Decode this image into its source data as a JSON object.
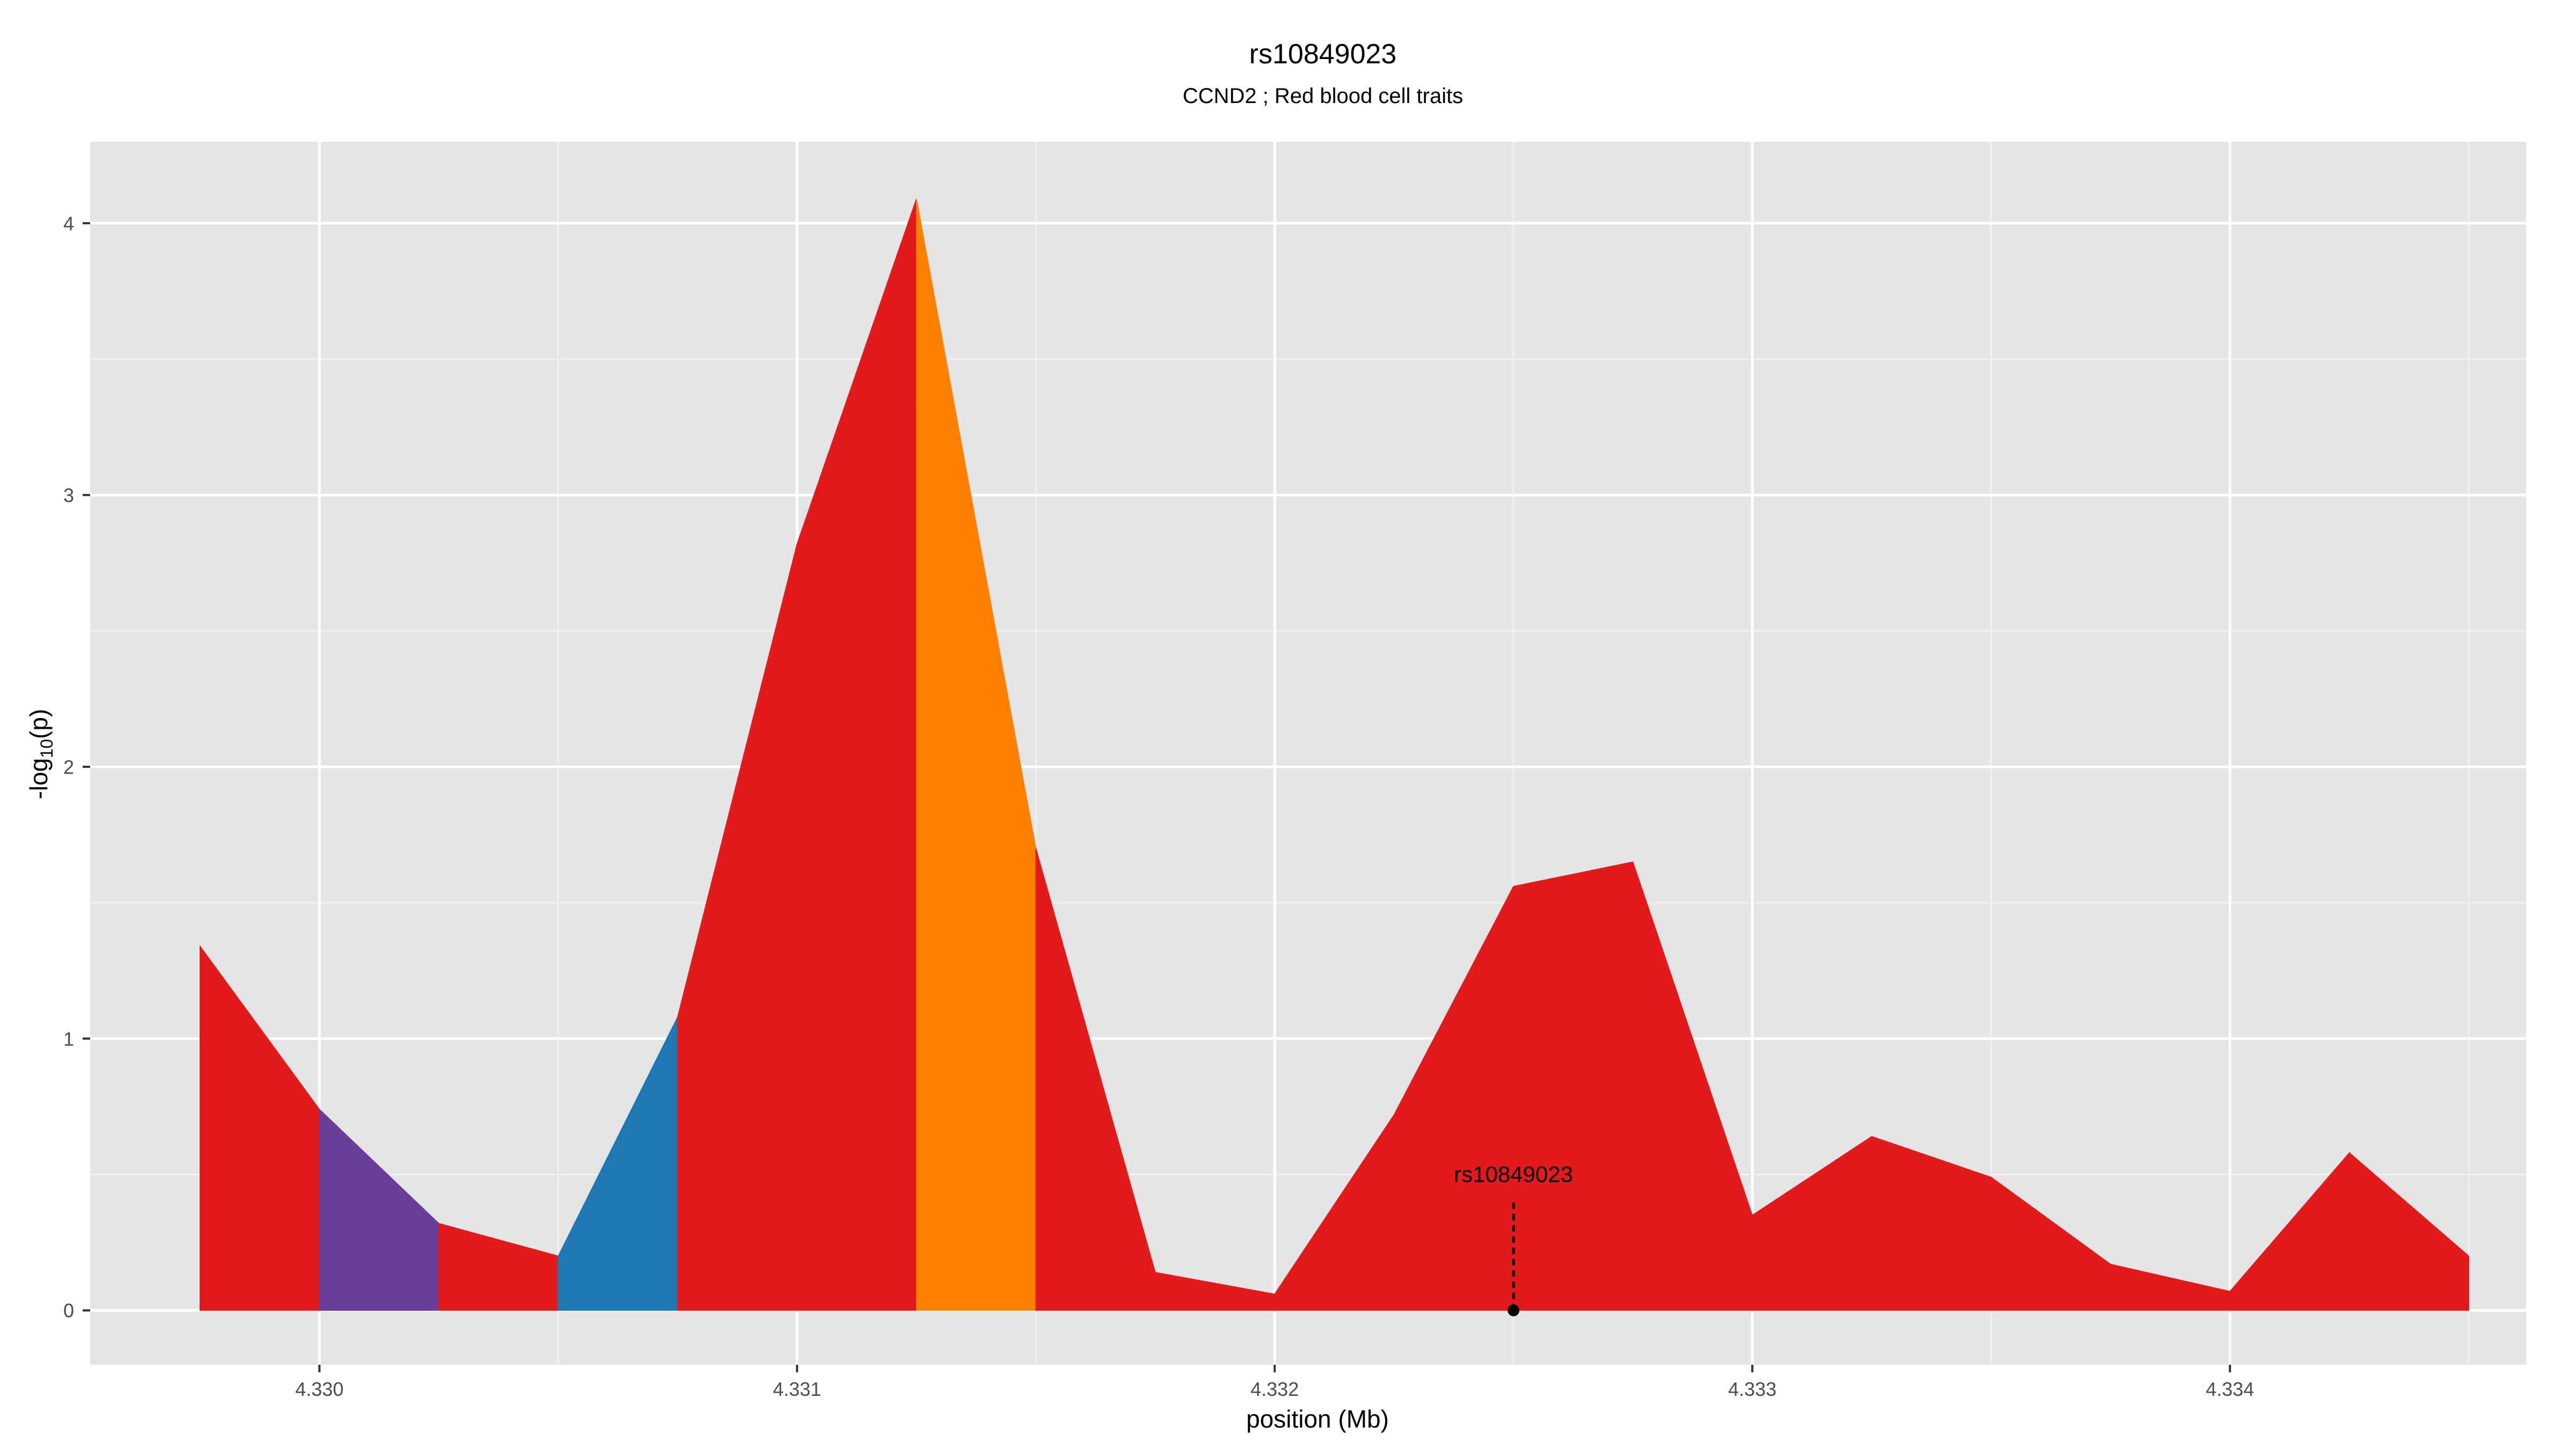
{
  "chart_data": {
    "type": "area",
    "title": "rs10849023",
    "subtitle": "CCND2 ; Red blood cell traits",
    "xlabel": "position (Mb)",
    "ylabel_main": "-log",
    "ylabel_sub": "10",
    "ylabel_end": "(p)",
    "xlim": [
      4.32952,
      4.33462
    ],
    "ylim": [
      -0.2,
      4.3
    ],
    "x_ticks": [
      4.33,
      4.331,
      4.332,
      4.333,
      4.334
    ],
    "x_tick_labels": [
      "4.330",
      "4.331",
      "4.332",
      "4.333",
      "4.334"
    ],
    "y_ticks": [
      0,
      1,
      2,
      3,
      4
    ],
    "y_tick_labels": [
      "0",
      "1",
      "2",
      "3",
      "4"
    ],
    "grid": true,
    "background": "#e5e5e5",
    "points": [
      {
        "x": 4.32975,
        "y": 1.34
      },
      {
        "x": 4.33,
        "y": 0.74
      },
      {
        "x": 4.33025,
        "y": 0.32
      },
      {
        "x": 4.3305,
        "y": 0.2
      },
      {
        "x": 4.33075,
        "y": 1.08
      },
      {
        "x": 4.331,
        "y": 2.82
      },
      {
        "x": 4.33125,
        "y": 4.09
      },
      {
        "x": 4.3315,
        "y": 1.7
      },
      {
        "x": 4.33175,
        "y": 0.14
      },
      {
        "x": 4.332,
        "y": 0.06
      },
      {
        "x": 4.33225,
        "y": 0.72
      },
      {
        "x": 4.3325,
        "y": 1.56
      },
      {
        "x": 4.33275,
        "y": 1.65
      },
      {
        "x": 4.333,
        "y": 0.35
      },
      {
        "x": 4.33325,
        "y": 0.64
      },
      {
        "x": 4.3335,
        "y": 0.49
      },
      {
        "x": 4.33375,
        "y": 0.17
      },
      {
        "x": 4.334,
        "y": 0.07
      },
      {
        "x": 4.33425,
        "y": 0.58
      },
      {
        "x": 4.3345,
        "y": 0.2
      }
    ],
    "default_color": "#e31a1c",
    "highlight_segments": [
      {
        "from": 4.33,
        "to": 4.33025,
        "color": "#6a3d9a"
      },
      {
        "from": 4.3305,
        "to": 4.33075,
        "color": "#1f78b4"
      },
      {
        "from": 4.33125,
        "to": 4.3315,
        "color": "#ff7f00"
      }
    ],
    "annotation": {
      "label": "rs10849023",
      "x": 4.3325,
      "y": 0,
      "label_y": 0.5
    }
  }
}
